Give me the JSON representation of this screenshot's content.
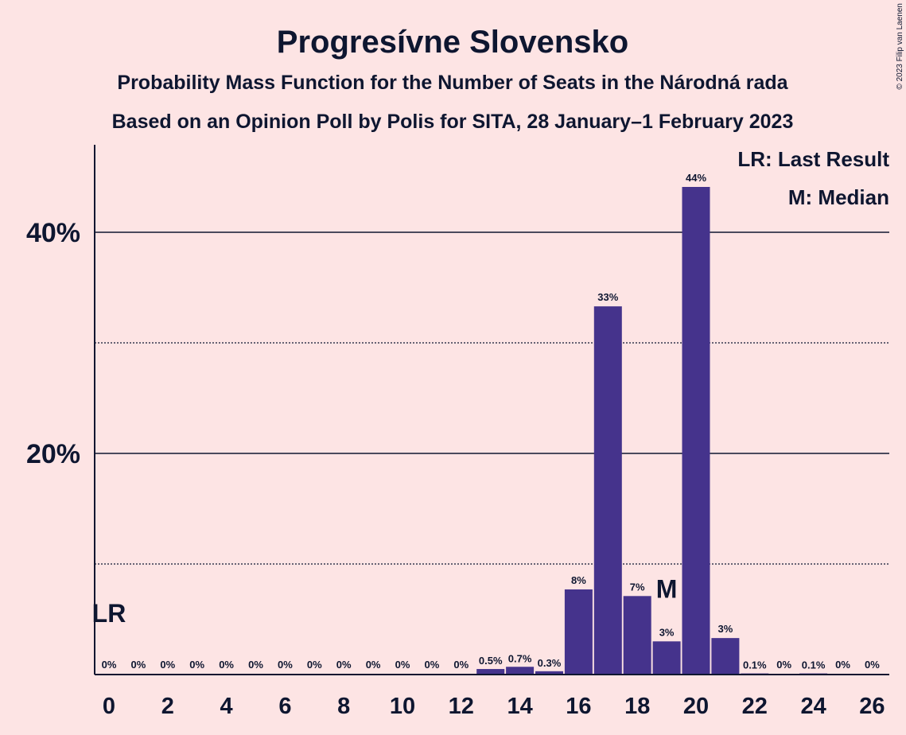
{
  "chart_data": {
    "type": "bar",
    "title": "Progresívne Slovensko",
    "subtitle": "Probability Mass Function for the Number of Seats in the Národná rada",
    "subtitle2": "Based on an Opinion Poll by Polis for SITA, 28 January–1 February 2023",
    "copyright": "© 2023 Filip van Laenen",
    "legend": [
      "LR: Last Result",
      "M: Median"
    ],
    "legend_position": "top-right",
    "x": [
      0,
      1,
      2,
      3,
      4,
      5,
      6,
      7,
      8,
      9,
      10,
      11,
      12,
      13,
      14,
      15,
      16,
      17,
      18,
      19,
      20,
      21,
      22,
      23,
      24,
      25,
      26
    ],
    "values": [
      0,
      0,
      0,
      0,
      0,
      0,
      0,
      0,
      0,
      0,
      0,
      0,
      0,
      0.5,
      0.7,
      0.3,
      7.7,
      33.3,
      7.1,
      3.0,
      44.1,
      3.3,
      0.1,
      0,
      0.1,
      0,
      0
    ],
    "value_labels": [
      "0%",
      "0%",
      "0%",
      "0%",
      "0%",
      "0%",
      "0%",
      "0%",
      "0%",
      "0%",
      "0%",
      "0%",
      "0%",
      "0.5%",
      "0.7%",
      "0.3%",
      "8%",
      "33%",
      "7%",
      "3%",
      "44%",
      "3%",
      "0.1%",
      "0%",
      "0.1%",
      "0%",
      "0%"
    ],
    "xticks": [
      0,
      2,
      4,
      6,
      8,
      10,
      12,
      14,
      16,
      18,
      20,
      22,
      24,
      26
    ],
    "yticks": [
      20,
      40
    ],
    "ytick_labels": [
      "20%",
      "40%"
    ],
    "minor_gridlines": [
      10,
      30
    ],
    "ylim": [
      0,
      48
    ],
    "last_result_seat": 0,
    "last_result_label": "LR",
    "median_seat": 19,
    "median_label": "M",
    "colors": {
      "bar": "#45338c",
      "background": "#fde4e4",
      "text": "#0e1630"
    }
  }
}
